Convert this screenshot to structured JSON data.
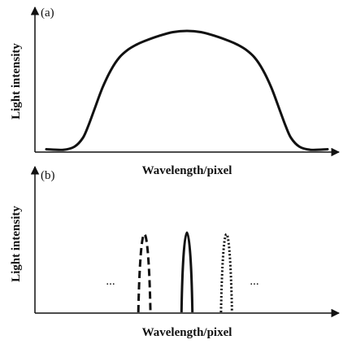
{
  "colors": {
    "ink": "#111111",
    "background": "#ffffff"
  },
  "chart_data": [
    {
      "type": "line",
      "panel_label": "(a)",
      "xlabel": "Wavelength/pixel",
      "ylabel": "Light intensity",
      "series": [
        {
          "style": "solid",
          "x": [
            0.0,
            0.06,
            0.1,
            0.13,
            0.15,
            0.17,
            0.2,
            0.23,
            0.26,
            0.29,
            0.32,
            0.35,
            0.4,
            0.45,
            0.5,
            0.55,
            0.6,
            0.65,
            0.68,
            0.71,
            0.74,
            0.77,
            0.8,
            0.83,
            0.85,
            0.87,
            0.9,
            0.94,
            1.0
          ],
          "y": [
            0.01,
            0.005,
            0.03,
            0.1,
            0.2,
            0.32,
            0.5,
            0.64,
            0.74,
            0.8,
            0.84,
            0.87,
            0.91,
            0.94,
            0.95,
            0.94,
            0.91,
            0.87,
            0.84,
            0.8,
            0.74,
            0.64,
            0.5,
            0.32,
            0.2,
            0.1,
            0.03,
            0.005,
            0.01
          ]
        }
      ]
    },
    {
      "type": "line",
      "panel_label": "(b)",
      "xlabel": "Wavelength/pixel",
      "ylabel": "Light intensity",
      "annotations": [
        "...",
        "..."
      ],
      "series": [
        {
          "style": "dashed",
          "center": 0.36,
          "halfwidth": 0.02,
          "peak": 0.98
        },
        {
          "style": "solid",
          "center": 0.5,
          "halfwidth": 0.018,
          "peak": 1.0
        },
        {
          "style": "dotted",
          "center": 0.63,
          "halfwidth": 0.018,
          "peak": 0.98
        }
      ]
    }
  ]
}
